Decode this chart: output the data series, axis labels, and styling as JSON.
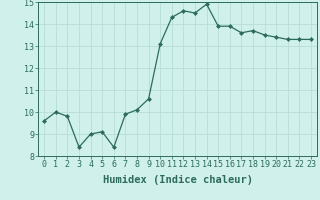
{
  "x": [
    0,
    1,
    2,
    3,
    4,
    5,
    6,
    7,
    8,
    9,
    10,
    11,
    12,
    13,
    14,
    15,
    16,
    17,
    18,
    19,
    20,
    21,
    22,
    23
  ],
  "y": [
    9.6,
    10.0,
    9.8,
    8.4,
    9.0,
    9.1,
    8.4,
    9.9,
    10.1,
    10.6,
    13.1,
    14.3,
    14.6,
    14.5,
    14.9,
    13.9,
    13.9,
    13.6,
    13.7,
    13.5,
    13.4,
    13.3,
    13.3,
    13.3
  ],
  "xlabel": "Humidex (Indice chaleur)",
  "ylim": [
    8,
    15
  ],
  "xlim_min": -0.5,
  "xlim_max": 23.5,
  "yticks": [
    8,
    9,
    10,
    11,
    12,
    13,
    14,
    15
  ],
  "xticks": [
    0,
    1,
    2,
    3,
    4,
    5,
    6,
    7,
    8,
    9,
    10,
    11,
    12,
    13,
    14,
    15,
    16,
    17,
    18,
    19,
    20,
    21,
    22,
    23
  ],
  "xtick_labels": [
    "0",
    "1",
    "2",
    "3",
    "4",
    "5",
    "6",
    "7",
    "8",
    "9",
    "10",
    "11",
    "12",
    "13",
    "14",
    "15",
    "16",
    "17",
    "18",
    "19",
    "20",
    "21",
    "22",
    "23"
  ],
  "line_color": "#2d6b5e",
  "marker": "D",
  "marker_size": 2.0,
  "background_color": "#cff0eb",
  "grid_color": "#b8ddd8",
  "xlabel_fontsize": 7.5,
  "tick_fontsize": 6.0,
  "linewidth": 0.9
}
